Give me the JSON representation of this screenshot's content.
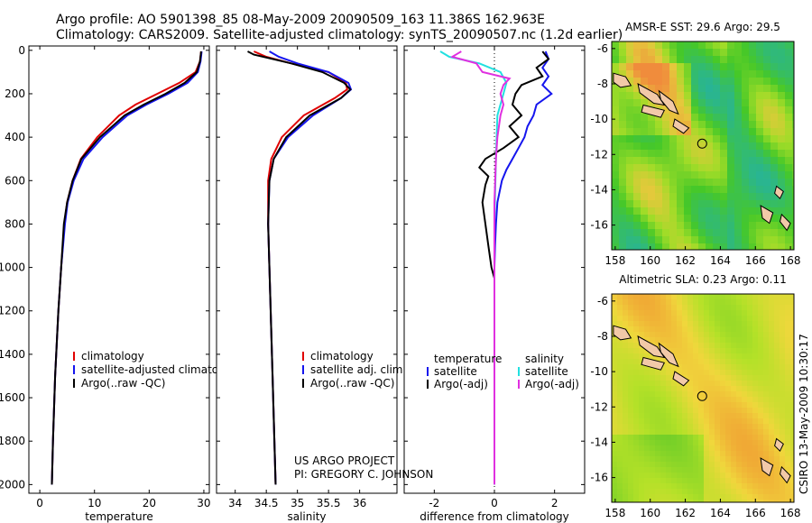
{
  "header": {
    "line1": "Argo profile: AO 5901398_85 08-May-2009 20090509_163 11.386S 162.963E",
    "line2": "Climatology: CARS2009. Satellite-adjusted climatology: synTS_20090507.nc (1.2d earlier)"
  },
  "footer": {
    "project": "US ARGO PROJECT",
    "pi": "PI: GREGORY C. JOHNSON",
    "timestamp": "CSIRO 13-May-2009 10:30:17"
  },
  "colors": {
    "climatology": "#e00000",
    "satellite": "#1515ee",
    "argo": "#000000",
    "sal_satellite": "#22e0e0",
    "sal_argo": "#e030e0"
  },
  "chart_data": [
    {
      "type": "line",
      "xlabel": "temperature",
      "ylim": [
        2040,
        -20
      ],
      "xlim": [
        -2,
        31
      ],
      "yticks": [
        0,
        200,
        400,
        600,
        800,
        1000,
        1200,
        1400,
        1600,
        1800,
        2000
      ],
      "xticks": [
        0,
        10,
        20,
        30
      ],
      "legend": [
        "climatology",
        "satellite-adjusted climatology",
        "Argo(..raw -QC)"
      ],
      "series": [
        {
          "name": "climatology",
          "color": "#e00000",
          "depth": [
            5,
            50,
            100,
            150,
            200,
            250,
            300,
            400,
            500,
            600,
            700,
            800,
            1000,
            1200,
            1500,
            1800,
            2000
          ],
          "values": [
            29.5,
            29.3,
            28.5,
            25.5,
            21.5,
            17.5,
            14.5,
            10.5,
            7.5,
            6.0,
            5.0,
            4.5,
            3.9,
            3.4,
            2.8,
            2.4,
            2.2
          ]
        },
        {
          "name": "satellite-adjusted climatology",
          "color": "#1515ee",
          "depth": [
            5,
            50,
            100,
            150,
            200,
            250,
            300,
            400,
            500,
            600,
            700,
            800,
            1000,
            1200,
            1500,
            1800,
            2000
          ],
          "values": [
            29.6,
            29.4,
            28.9,
            27.0,
            23.5,
            19.5,
            16.0,
            11.5,
            8.0,
            6.2,
            5.1,
            4.6,
            3.9,
            3.4,
            2.8,
            2.4,
            2.2
          ]
        },
        {
          "name": "Argo(..raw -QC)",
          "color": "#000000",
          "depth": [
            5,
            50,
            100,
            150,
            200,
            250,
            300,
            400,
            500,
            600,
            700,
            800,
            1000,
            1200,
            1500,
            1800,
            2000
          ],
          "values": [
            29.5,
            29.3,
            28.7,
            26.5,
            23.0,
            19.0,
            15.5,
            11.0,
            7.6,
            6.0,
            5.0,
            4.4,
            3.9,
            3.4,
            2.8,
            2.4,
            2.2
          ]
        }
      ]
    },
    {
      "type": "line",
      "xlabel": "salinity",
      "ylim": [
        2040,
        -20
      ],
      "xlim": [
        33.7,
        36.6
      ],
      "xticks": [
        34,
        34.5,
        35,
        35.5,
        36
      ],
      "legend": [
        "climatology",
        "satellite adj. clim.",
        "Argo(..raw -QC)"
      ],
      "series": [
        {
          "name": "climatology",
          "color": "#e00000",
          "depth": [
            5,
            30,
            60,
            100,
            150,
            180,
            220,
            300,
            400,
            500,
            600,
            800,
            1000,
            1500,
            2000
          ],
          "values": [
            34.3,
            34.5,
            34.9,
            35.5,
            35.78,
            35.8,
            35.6,
            35.1,
            34.75,
            34.58,
            34.53,
            34.53,
            34.55,
            34.6,
            34.65
          ]
        },
        {
          "name": "satellite adj. clim.",
          "color": "#1515ee",
          "depth": [
            5,
            30,
            60,
            100,
            150,
            180,
            220,
            300,
            400,
            500,
            600,
            800,
            1000,
            1500,
            2000
          ],
          "values": [
            34.55,
            34.7,
            35.0,
            35.5,
            35.82,
            35.86,
            35.7,
            35.25,
            34.85,
            34.62,
            34.55,
            34.53,
            34.55,
            34.6,
            34.65
          ]
        },
        {
          "name": "Argo(..raw -QC)",
          "color": "#000000",
          "depth": [
            5,
            20,
            40,
            60,
            100,
            150,
            180,
            220,
            300,
            400,
            500,
            600,
            800,
            1000,
            1500,
            2000
          ],
          "values": [
            34.2,
            34.3,
            34.6,
            34.9,
            35.4,
            35.75,
            35.85,
            35.7,
            35.2,
            34.82,
            34.62,
            34.55,
            34.53,
            34.55,
            34.6,
            34.65
          ]
        }
      ]
    },
    {
      "type": "line",
      "xlabel": "difference from climatology",
      "ylim": [
        2040,
        -20
      ],
      "xlim": [
        -3,
        3
      ],
      "xticks": [
        -2,
        0,
        2
      ],
      "legend_temperature": [
        "temperature",
        "satellite",
        "Argo(-adj)"
      ],
      "legend_salinity": [
        "salinity",
        "satellite",
        "Argo(-adj)"
      ],
      "series": [
        {
          "name": "temperature satellite",
          "color": "#1515ee",
          "depth": [
            5,
            40,
            80,
            120,
            160,
            200,
            250,
            300,
            350,
            400,
            450,
            500,
            550,
            600,
            700,
            800,
            900,
            1000,
            1200,
            1500,
            2000
          ],
          "values": [
            1.7,
            1.8,
            1.6,
            1.8,
            1.6,
            1.9,
            1.4,
            1.3,
            1.1,
            1.0,
            0.8,
            0.6,
            0.4,
            0.25,
            0.1,
            0.05,
            0.02,
            0.0,
            0.0,
            0.0,
            0.0
          ]
        },
        {
          "name": "temperature Argo(-adj)",
          "color": "#000000",
          "depth": [
            5,
            40,
            80,
            120,
            160,
            200,
            250,
            300,
            350,
            400,
            450,
            500,
            540,
            580,
            620,
            700,
            800,
            900,
            1000,
            1050
          ],
          "values": [
            1.6,
            1.8,
            1.4,
            1.6,
            0.9,
            0.7,
            0.6,
            0.9,
            0.5,
            0.8,
            0.3,
            -0.3,
            -0.5,
            -0.2,
            -0.3,
            -0.4,
            -0.3,
            -0.2,
            -0.1,
            0.0
          ]
        },
        {
          "name": "salinity satellite",
          "color": "#22e0e0",
          "depth": [
            5,
            30,
            60,
            100,
            150,
            200,
            300,
            500,
            800,
            1000,
            1500,
            2000
          ],
          "values": [
            -1.8,
            -1.5,
            -0.5,
            0.2,
            0.4,
            0.3,
            0.1,
            0.05,
            0.0,
            0.0,
            0.0,
            0.0
          ]
        },
        {
          "name": "salinity Argo(-adj)",
          "color": "#e030e0",
          "depth": [
            5,
            30,
            60,
            100,
            130,
            160,
            200,
            250,
            300,
            400,
            500,
            700,
            1000,
            1500,
            2000
          ],
          "values": [
            -1.1,
            -1.4,
            -0.6,
            -0.4,
            0.5,
            0.3,
            0.2,
            0.3,
            0.2,
            0.1,
            0.05,
            0.0,
            0.0,
            0.0,
            0.0
          ]
        }
      ]
    },
    {
      "type": "heatmap",
      "title": "AMSR-E SST: 29.6 Argo: 29.5",
      "xticks": [
        158,
        160,
        162,
        164,
        166,
        168
      ],
      "yticks": [
        -6,
        -8,
        -10,
        -12,
        -14,
        -16
      ],
      "xlim": [
        157.8,
        168.2
      ],
      "ylim": [
        -17.4,
        -5.6
      ],
      "argo_position": [
        162.963,
        -11.386
      ]
    },
    {
      "type": "heatmap",
      "title": "Altimetric SLA: 0.23 Argo: 0.11",
      "xticks": [
        158,
        160,
        162,
        164,
        166,
        168
      ],
      "yticks": [
        -6,
        -8,
        -10,
        -12,
        -14,
        -16
      ],
      "xlim": [
        157.8,
        168.2
      ],
      "ylim": [
        -17.4,
        -5.6
      ],
      "argo_position": [
        162.963,
        -11.386
      ]
    }
  ]
}
